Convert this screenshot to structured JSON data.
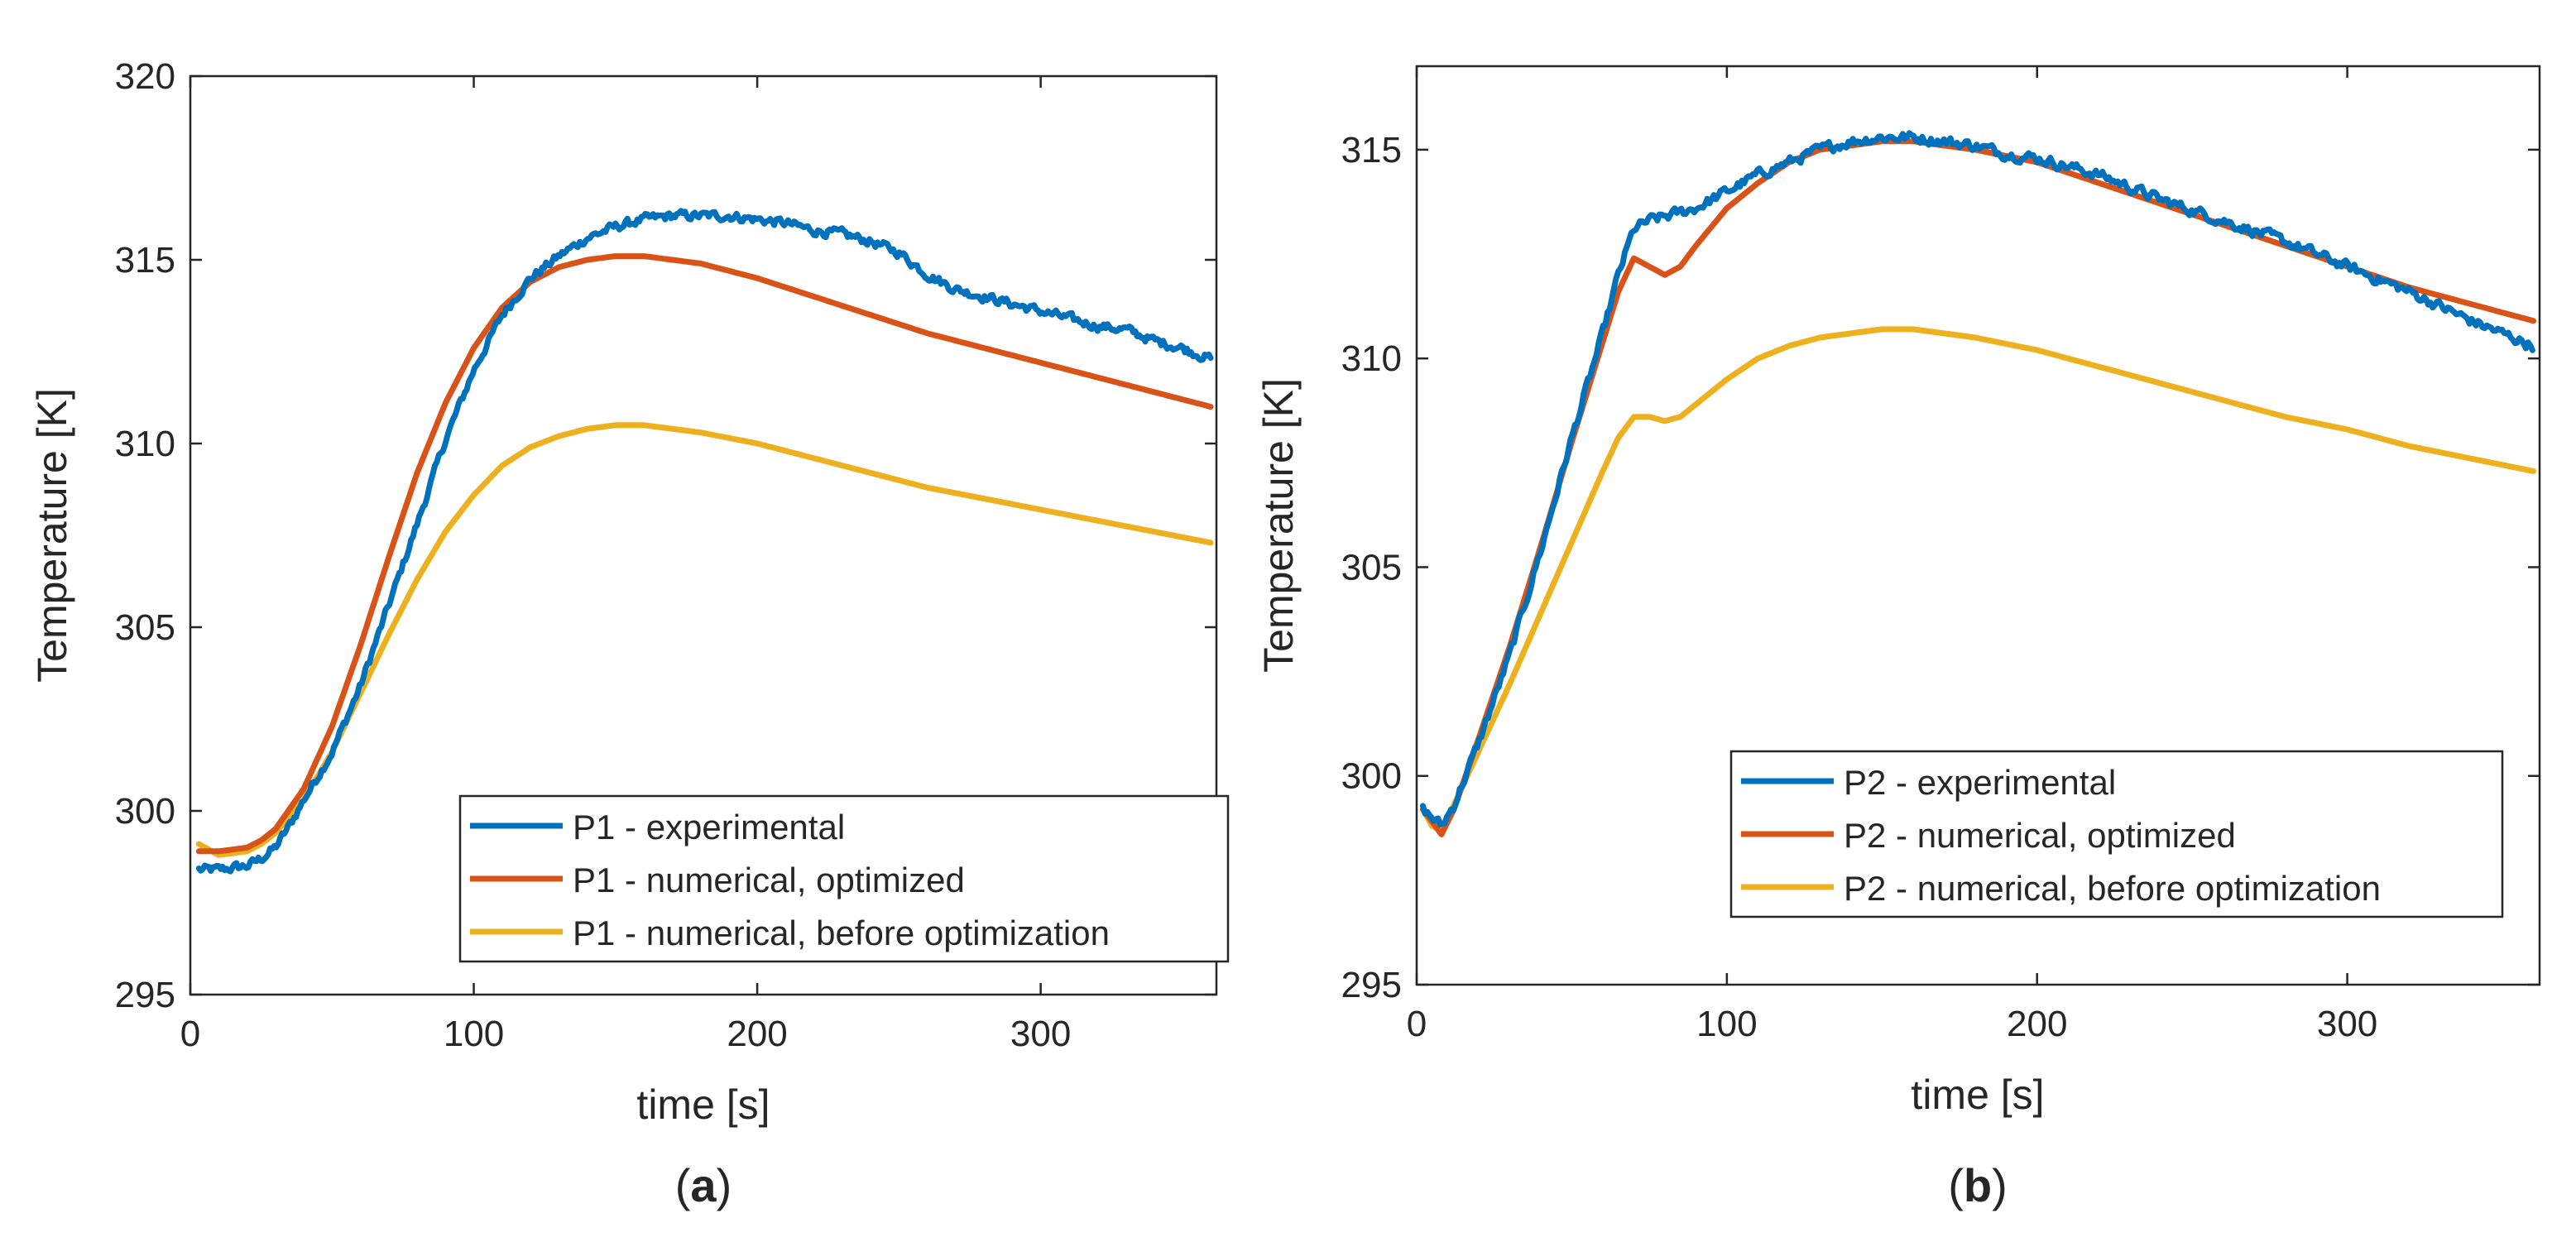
{
  "chart_data": [
    {
      "type": "line",
      "panel_label": {
        "open": "(",
        "letter": "a",
        "close": ")"
      },
      "xlabel": "time [s]",
      "ylabel": "Temperature [K]",
      "xlim": [
        0,
        362
      ],
      "ylim": [
        295,
        320
      ],
      "xticks": [
        0,
        100,
        200,
        300
      ],
      "yticks": [
        295,
        300,
        305,
        310,
        315,
        320
      ],
      "grid": false,
      "legend_position": "bottom-right",
      "series": [
        {
          "name": "P1 - experimental",
          "color": "#0072BD",
          "noisy": true,
          "x": [
            3,
            10,
            20,
            25,
            30,
            35,
            40,
            50,
            60,
            70,
            80,
            90,
            100,
            110,
            120,
            130,
            140,
            150,
            160,
            170,
            180,
            190,
            200,
            210,
            220,
            230,
            240,
            250,
            260,
            270,
            280,
            290,
            300,
            310,
            320,
            330,
            340,
            350,
            360
          ],
          "y": [
            298.4,
            298.4,
            298.5,
            298.7,
            299.0,
            299.6,
            300.3,
            301.6,
            303.4,
            305.6,
            307.8,
            310.1,
            312.0,
            313.5,
            314.5,
            315.1,
            315.6,
            315.9,
            316.1,
            316.2,
            316.2,
            316.2,
            316.1,
            316.0,
            315.8,
            315.7,
            315.5,
            315.2,
            314.6,
            314.2,
            314.0,
            313.8,
            313.6,
            313.4,
            313.2,
            313.1,
            312.8,
            312.6,
            312.3
          ]
        },
        {
          "name": "P1 - numerical, optimized",
          "color": "#D95319",
          "noisy": false,
          "x": [
            3,
            10,
            20,
            25,
            30,
            40,
            50,
            60,
            70,
            80,
            90,
            100,
            110,
            120,
            130,
            140,
            150,
            160,
            170,
            180,
            190,
            200,
            220,
            240,
            260,
            280,
            300,
            320,
            340,
            360
          ],
          "y": [
            298.9,
            298.9,
            299.0,
            299.2,
            299.5,
            300.6,
            302.3,
            304.5,
            306.9,
            309.2,
            311.1,
            312.6,
            313.7,
            314.4,
            314.8,
            315.0,
            315.1,
            315.1,
            315.0,
            314.9,
            314.7,
            314.5,
            314.0,
            313.5,
            313.0,
            312.6,
            312.2,
            311.8,
            311.4,
            311.0
          ]
        },
        {
          "name": "P1 - numerical, before optimization",
          "color": "#EDB120",
          "noisy": false,
          "x": [
            3,
            10,
            20,
            25,
            30,
            40,
            50,
            60,
            70,
            80,
            90,
            100,
            110,
            120,
            130,
            140,
            150,
            160,
            170,
            180,
            200,
            220,
            240,
            260,
            280,
            300,
            320,
            340,
            360
          ],
          "y": [
            299.1,
            298.8,
            298.9,
            299.1,
            299.4,
            300.3,
            301.6,
            303.2,
            304.8,
            306.3,
            307.6,
            308.6,
            309.4,
            309.9,
            310.2,
            310.4,
            310.5,
            310.5,
            310.4,
            310.3,
            310.0,
            309.6,
            309.2,
            308.8,
            308.5,
            308.2,
            307.9,
            307.6,
            307.3
          ]
        }
      ]
    },
    {
      "type": "line",
      "panel_label": {
        "open": "(",
        "letter": "b",
        "close": ")"
      },
      "xlabel": "time [s]",
      "ylabel": "Temperature [K]",
      "xlim": [
        0,
        362
      ],
      "ylim": [
        295,
        317
      ],
      "xticks": [
        0,
        100,
        200,
        300
      ],
      "yticks": [
        295,
        300,
        305,
        310,
        315
      ],
      "grid": false,
      "legend_position": "bottom-right",
      "series": [
        {
          "name": "P2 - experimental",
          "color": "#0072BD",
          "noisy": true,
          "x": [
            2,
            5,
            8,
            12,
            20,
            30,
            40,
            50,
            60,
            65,
            70,
            75,
            80,
            90,
            100,
            110,
            120,
            130,
            140,
            150,
            160,
            170,
            180,
            190,
            200,
            220,
            240,
            260,
            280,
            300,
            320,
            340,
            350,
            360
          ],
          "y": [
            299.2,
            299.0,
            298.8,
            299.3,
            300.8,
            302.9,
            305.4,
            308.1,
            310.6,
            312.0,
            313.1,
            313.3,
            313.4,
            313.6,
            314.0,
            314.4,
            314.7,
            315.0,
            315.2,
            315.3,
            315.3,
            315.2,
            315.1,
            314.9,
            314.8,
            314.4,
            313.8,
            313.3,
            312.8,
            312.2,
            311.6,
            310.9,
            310.6,
            310.3
          ]
        },
        {
          "name": "P2 - numerical, optimized",
          "color": "#D95319",
          "noisy": false,
          "x": [
            2,
            5,
            8,
            12,
            20,
            30,
            40,
            50,
            60,
            65,
            70,
            75,
            80,
            85,
            90,
            100,
            110,
            120,
            130,
            140,
            150,
            160,
            170,
            180,
            200,
            220,
            240,
            260,
            280,
            300,
            320,
            340,
            360
          ],
          "y": [
            299.2,
            298.9,
            298.6,
            299.2,
            300.9,
            303.1,
            305.5,
            308.0,
            310.4,
            311.6,
            312.4,
            312.2,
            312.0,
            312.2,
            312.7,
            313.6,
            314.2,
            314.7,
            315.0,
            315.1,
            315.2,
            315.2,
            315.1,
            315.0,
            314.7,
            314.2,
            313.7,
            313.2,
            312.7,
            312.2,
            311.7,
            311.3,
            310.9
          ]
        },
        {
          "name": "P2 - numerical, before optimization",
          "color": "#EDB120",
          "noisy": false,
          "x": [
            2,
            5,
            8,
            12,
            20,
            30,
            40,
            50,
            60,
            65,
            70,
            75,
            80,
            85,
            90,
            100,
            110,
            120,
            130,
            140,
            150,
            160,
            170,
            180,
            200,
            220,
            240,
            260,
            280,
            300,
            320,
            340,
            360
          ],
          "y": [
            299.2,
            298.8,
            298.7,
            299.3,
            300.6,
            302.2,
            303.9,
            305.6,
            307.3,
            308.1,
            308.6,
            308.6,
            308.5,
            308.6,
            308.9,
            309.5,
            310.0,
            310.3,
            310.5,
            310.6,
            310.7,
            310.7,
            310.6,
            310.5,
            310.2,
            309.8,
            309.4,
            309.0,
            308.6,
            308.3,
            307.9,
            307.6,
            307.3
          ]
        }
      ]
    }
  ]
}
